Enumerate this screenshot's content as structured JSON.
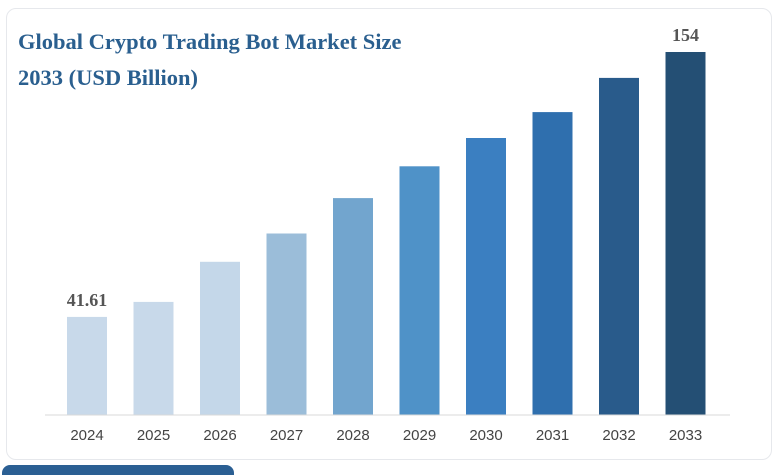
{
  "title_line1": "Global Crypto Trading Bot Market Size",
  "title_line2": "2033 (USD Billion)",
  "chart_data": {
    "type": "bar",
    "title": "Global Crypto Trading Bot Market Size 2033 (USD Billion)",
    "categories": [
      "2024",
      "2025",
      "2026",
      "2027",
      "2028",
      "2029",
      "2030",
      "2031",
      "2032",
      "2033"
    ],
    "values": [
      41.61,
      48.0,
      65.0,
      77.0,
      92.0,
      105.5,
      117.5,
      128.5,
      143.0,
      154
    ],
    "data_labels": [
      "41.61",
      "",
      "",
      "",
      "",
      "",
      "",
      "",
      "",
      "154"
    ],
    "bar_colors": [
      "#c8d9ea",
      "#c8d9ea",
      "#c4d7e9",
      "#9bbdd9",
      "#72a5ce",
      "#4f92c8",
      "#3b7fc1",
      "#2f6fae",
      "#295b8b",
      "#244f74"
    ],
    "ylim": [
      0,
      154
    ],
    "xlabel": "",
    "ylabel": "",
    "grid": false,
    "legend": "none"
  }
}
